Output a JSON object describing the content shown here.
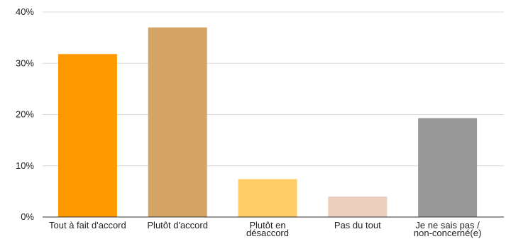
{
  "chart_data": {
    "type": "bar",
    "categories": [
      [
        "Tout à fait d'accord"
      ],
      [
        "Plutôt d'accord"
      ],
      [
        "Plutôt en",
        "désaccord"
      ],
      [
        "Pas du tout"
      ],
      [
        "Je ne sais pas /",
        "non-concerné(e)"
      ]
    ],
    "values": [
      31.8,
      37.0,
      7.4,
      4.0,
      19.3
    ],
    "colors": [
      "#ff9900",
      "#d4a464",
      "#ffcc66",
      "#ecd0c0",
      "#999999"
    ],
    "ylim": [
      0,
      40
    ],
    "yticks": [
      0,
      10,
      20,
      30,
      40
    ],
    "ytick_labels": [
      "0%",
      "10%",
      "20%",
      "30%",
      "40%"
    ],
    "title": "",
    "xlabel": "",
    "ylabel": "",
    "grid": true,
    "legend": "none"
  }
}
